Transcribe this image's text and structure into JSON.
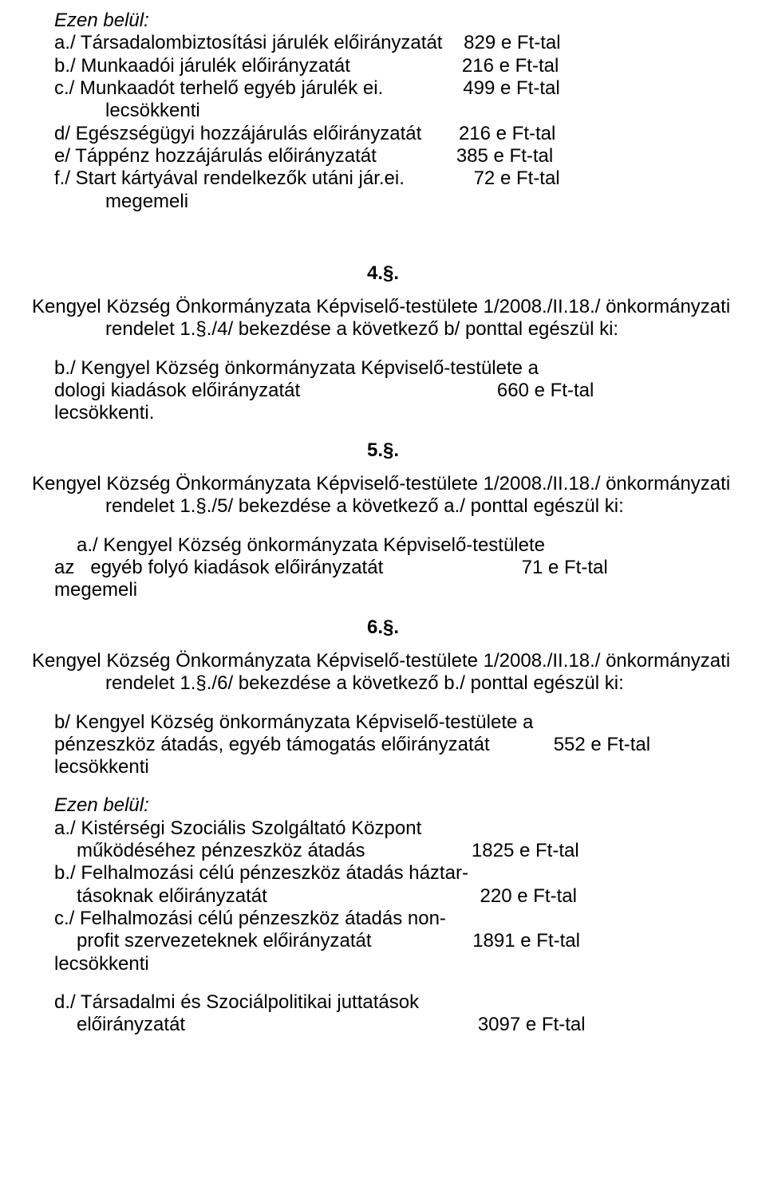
{
  "ezen_belul": "Ezen belül:",
  "block1": {
    "a_left": "a./ Társadalombiztosítási járulék előirányzatát",
    "a_right": "    829 e Ft-tal",
    "b_left": "b./ Munkaadói járulék előirányzatát",
    "b_right": "                     216 e Ft-tal",
    "c_left": "c./ Munkaadót terhelő egyéb járulék ei.",
    "c_right": "               499 e Ft-tal",
    "lecsokkenti": "lecsökkenti",
    "d_left": "d/ Egészségügyi hozzájárulás előirányzatát",
    "d_right": "       216 e Ft-tal",
    "e_left": "e/ Táppénz hozzájárulás előirányzatát",
    "e_right": "               385 e Ft-tal",
    "f_left": "f./ Start kártyával rendelkezők utáni jár.ei.",
    "f_right": "             72 e Ft-tal",
    "megemeli": "megemeli"
  },
  "sec4": {
    "num": "4.§.",
    "p1": "Kengyel Község Önkormányzata Képviselő-testülete 1/2008./II.18./ önkormányzati",
    "p2": "rendelet 1.§./4/ bekezdése a következő b/ ponttal egészül ki:",
    "b1": "b./ Kengyel Község önkormányzata Képviselő-testülete a",
    "b2_left": "dologi kiadások előirányzatát",
    "b2_right": "                                     660 e Ft-tal",
    "b3": "lecsökkenti."
  },
  "sec5": {
    "num": "5.§.",
    "p1": "Kengyel Község Önkormányzata Képviselő-testülete 1/2008./II.18./ önkormányzati",
    "p2": "rendelet 1.§./5/ bekezdése a következő a./ ponttal egészül ki:",
    "a1": "a./ Kengyel Község önkormányzata Képviselő-testülete",
    "a2_left": "az   egyéb folyó kiadások előirányzatát",
    "a2_right": "                          71 e Ft-tal",
    "a3": "megemeli"
  },
  "sec6": {
    "num": "6.§.",
    "p1": "Kengyel Község Önkormányzata Képviselő-testülete 1/2008./II.18./ önkormányzati",
    "p2": "rendelet 1.§./6/ bekezdése a következő b./ ponttal egészül ki:",
    "b1": "b/ Kengyel Község önkormányzata Képviselő-testülete a",
    "b2_left": "pénzeszköz átadás, egyéb támogatás előirányzatát",
    "b2_right": "            552 e Ft-tal",
    "b3": "lecsökkenti",
    "ezen": "Ezen belül:",
    "a1": "a./ Kistérségi Szociális Szolgáltató Központ",
    "a2_left": "működéséhez pénzeszköz átadás",
    "a2_right": "                    1825 e Ft-tal",
    "bline1": "b./ Felhalmozási célú pénzeszköz átadás háztar-",
    "bline2_left": "tásoknak előirányzatát",
    "bline2_right": "                                        220 e Ft-tal",
    "c1": "c./ Felhalmozási célú pénzeszköz átadás non-",
    "c2_left": "profit szervezeteknek előirányzatát",
    "c2_right": "                   1891 e Ft-tal",
    "lecs": "lecsökkenti",
    "d1": "d./ Társadalmi és Szociálpolitikai juttatások",
    "d2_left": "előirányzatát",
    "d2_right": "                                                       3097 e Ft-tal"
  }
}
